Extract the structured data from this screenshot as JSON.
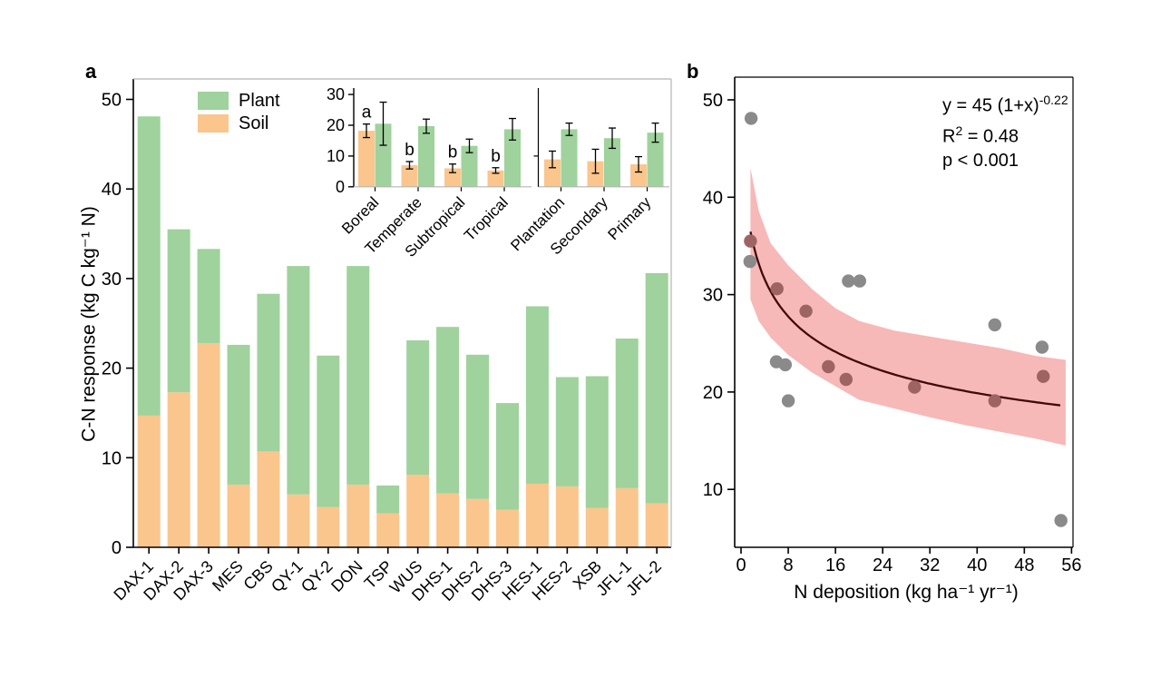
{
  "panels": {
    "a": {
      "letter": "a",
      "ylabel": "C-N response (kg C kg⁻¹ N)",
      "legend": {
        "plant": "Plant",
        "soil": "Soil"
      }
    },
    "b": {
      "letter": "b",
      "xlabel": "N deposition (kg ha⁻¹ yr⁻¹)",
      "fit_text": {
        "eq_base": "y = 45 (1+x)",
        "eq_exp": "-0.22",
        "r2_base": "R",
        "r2_exp": "2",
        "r2_value": " = 0.48",
        "p_value": "p < 0.001"
      }
    }
  },
  "colors": {
    "plant_green": "#9fd29c",
    "soil_orange": "#fac68d",
    "band_pink": "#f7b8b8",
    "curve_darkred": "#400a0a",
    "point_gray": "#8a8a8a",
    "point_in_band": "#9e6363",
    "axis_black": "#000000",
    "axis_gray": "#b5b5b5",
    "text_black": "#000000"
  },
  "chart_data": [
    {
      "id": "panel_a_main",
      "type": "bar",
      "stacked": true,
      "ylabel": "C-N response (kg C kg-1 N)",
      "ylim": [
        0,
        52
      ],
      "yticks": [
        0,
        10,
        20,
        30,
        40,
        50
      ],
      "grid": false,
      "legend_position": "top-left-inside",
      "categories": [
        "DAX-1",
        "DAX-2",
        "DAX-3",
        "MES",
        "CBS",
        "QY-1",
        "QY-2",
        "DON",
        "TSP",
        "WUS",
        "DHS-1",
        "DHS-2",
        "DHS-3",
        "HES-1",
        "HES-2",
        "XSB",
        "JFL-1",
        "JFL-2"
      ],
      "series": [
        {
          "name": "Soil",
          "values": [
            14.7,
            17.3,
            22.8,
            7.0,
            10.7,
            5.9,
            4.5,
            7.0,
            3.8,
            8.1,
            6.0,
            5.4,
            4.2,
            7.1,
            6.8,
            4.4,
            6.6,
            4.9
          ]
        },
        {
          "name": "Plant",
          "values": [
            33.4,
            18.2,
            10.5,
            15.6,
            17.6,
            25.5,
            16.9,
            24.4,
            3.1,
            15.0,
            18.6,
            16.1,
            11.9,
            19.8,
            12.2,
            14.7,
            16.7,
            25.7
          ]
        }
      ]
    },
    {
      "id": "panel_a_inset",
      "type": "bar",
      "grouped": true,
      "ylim": [
        0,
        32
      ],
      "yticks": [
        0,
        10,
        20,
        30
      ],
      "grid": false,
      "panel_split_after_index": 3,
      "groups": [
        {
          "label": "Boreal",
          "soil": 18.2,
          "soil_err": 2.2,
          "plant": 20.5,
          "plant_err": 7.0,
          "letter": "a"
        },
        {
          "label": "Temperate",
          "soil": 7.0,
          "soil_err": 1.2,
          "plant": 19.7,
          "plant_err": 2.3,
          "letter": "b"
        },
        {
          "label": "Subtropical",
          "soil": 6.0,
          "soil_err": 1.4,
          "plant": 13.3,
          "plant_err": 2.2,
          "letter": "b"
        },
        {
          "label": "Tropical",
          "soil": 5.3,
          "soil_err": 0.9,
          "plant": 18.7,
          "plant_err": 3.5,
          "letter": "b"
        },
        {
          "label": "Plantation",
          "soil": 8.9,
          "soil_err": 2.7,
          "plant": 18.7,
          "plant_err": 2.0,
          "letter": ""
        },
        {
          "label": "Secondary",
          "soil": 8.3,
          "soil_err": 3.9,
          "plant": 15.8,
          "plant_err": 3.3,
          "letter": ""
        },
        {
          "label": "Primary",
          "soil": 7.3,
          "soil_err": 2.5,
          "plant": 17.6,
          "plant_err": 3.1,
          "letter": ""
        }
      ]
    },
    {
      "id": "panel_b",
      "type": "scatter",
      "xlabel": "N deposition (kg ha-1 yr-1)",
      "xlim": [
        -1,
        56
      ],
      "ylim": [
        4,
        52
      ],
      "xticks": [
        0,
        8,
        16,
        24,
        32,
        40,
        48,
        56
      ],
      "yticks": [
        10,
        20,
        30,
        40,
        50
      ],
      "grid": false,
      "points": [
        [
          1.7,
          48.1
        ],
        [
          1.6,
          35.5
        ],
        [
          1.5,
          33.4
        ],
        [
          6.1,
          30.6
        ],
        [
          11.0,
          28.3
        ],
        [
          18.2,
          31.4
        ],
        [
          20.1,
          31.4
        ],
        [
          6.0,
          23.1
        ],
        [
          7.5,
          22.8
        ],
        [
          8.0,
          19.1
        ],
        [
          14.8,
          22.6
        ],
        [
          17.8,
          21.3
        ],
        [
          29.4,
          20.5
        ],
        [
          43.0,
          26.9
        ],
        [
          43.0,
          19.1
        ],
        [
          51.0,
          24.6
        ],
        [
          51.2,
          21.6
        ],
        [
          54.2,
          6.8
        ]
      ],
      "fit": {
        "equation": "y = 45 (1+x)^-0.22",
        "a": 45,
        "b": -0.22,
        "r2": 0.48,
        "p": "< 0.001",
        "x_start": 1.6,
        "x_end": 54.5
      },
      "band": [
        [
          1.6,
          29.5,
          43.0
        ],
        [
          3,
          27.3,
          38.6
        ],
        [
          5,
          25.6,
          35.3
        ],
        [
          8,
          23.8,
          33.0
        ],
        [
          12,
          22.0,
          30.6
        ],
        [
          16,
          20.6,
          28.6
        ],
        [
          20,
          19.2,
          27.3
        ],
        [
          26,
          18.3,
          26.3
        ],
        [
          32,
          17.4,
          25.7
        ],
        [
          38,
          16.6,
          25.1
        ],
        [
          44,
          15.9,
          24.5
        ],
        [
          50,
          15.2,
          23.7
        ],
        [
          55,
          14.5,
          23.3
        ]
      ]
    }
  ]
}
